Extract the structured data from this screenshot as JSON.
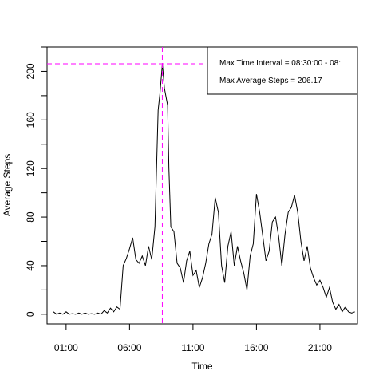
{
  "chart_data": {
    "type": "line",
    "xlabel": "Time",
    "ylabel": "Average Steps",
    "xlim": [
      -0.5,
      23.96
    ],
    "ylim": [
      -8,
      220
    ],
    "x_unit": "hour of day",
    "xticks": [
      {
        "value": 1,
        "label": "01:00"
      },
      {
        "value": 6,
        "label": "06:00"
      },
      {
        "value": 11,
        "label": "11:00"
      },
      {
        "value": 16,
        "label": "16:00"
      },
      {
        "value": 21,
        "label": "21:00"
      }
    ],
    "yticks_labeled": [
      0,
      40,
      80,
      120,
      160,
      200
    ],
    "yticks_minor": [
      20,
      60,
      100,
      140,
      180,
      220
    ],
    "grid": false,
    "line_color": "#000000",
    "marker_color": "#ff00ff",
    "max_marker": {
      "x": 8.583,
      "y": 206.17
    },
    "annotation": {
      "line1": "Max Time Interval =   08:30:00 -  08:",
      "line2": "Max Average Steps =  206.17",
      "placement": "top-right"
    },
    "series": [
      {
        "points": [
          [
            0.0,
            2
          ],
          [
            0.25,
            0
          ],
          [
            0.5,
            1
          ],
          [
            0.75,
            0
          ],
          [
            1.0,
            2
          ],
          [
            1.25,
            0
          ],
          [
            1.5,
            0.5
          ],
          [
            1.75,
            0
          ],
          [
            2.0,
            1
          ],
          [
            2.25,
            0
          ],
          [
            2.5,
            1
          ],
          [
            2.75,
            0
          ],
          [
            3.0,
            0.5
          ],
          [
            3.25,
            0
          ],
          [
            3.5,
            1
          ],
          [
            3.75,
            0
          ],
          [
            4.0,
            3
          ],
          [
            4.25,
            1
          ],
          [
            4.5,
            5
          ],
          [
            4.75,
            2
          ],
          [
            5.0,
            6
          ],
          [
            5.25,
            4
          ],
          [
            5.5,
            40
          ],
          [
            5.75,
            46
          ],
          [
            6.0,
            54
          ],
          [
            6.25,
            63
          ],
          [
            6.5,
            45
          ],
          [
            6.75,
            42
          ],
          [
            7.0,
            48
          ],
          [
            7.25,
            40
          ],
          [
            7.5,
            56
          ],
          [
            7.75,
            45
          ],
          [
            8.0,
            72
          ],
          [
            8.25,
            168
          ],
          [
            8.4,
            182
          ],
          [
            8.583,
            206.17
          ],
          [
            8.75,
            186
          ],
          [
            9.0,
            172
          ],
          [
            9.1,
            120
          ],
          [
            9.25,
            72
          ],
          [
            9.5,
            68
          ],
          [
            9.75,
            42
          ],
          [
            10.0,
            38
          ],
          [
            10.25,
            26
          ],
          [
            10.5,
            44
          ],
          [
            10.75,
            52
          ],
          [
            11.0,
            32
          ],
          [
            11.25,
            36
          ],
          [
            11.5,
            22
          ],
          [
            11.75,
            30
          ],
          [
            12.0,
            42
          ],
          [
            12.25,
            58
          ],
          [
            12.5,
            66
          ],
          [
            12.75,
            96
          ],
          [
            13.0,
            84
          ],
          [
            13.25,
            40
          ],
          [
            13.5,
            26
          ],
          [
            13.75,
            56
          ],
          [
            14.0,
            68
          ],
          [
            14.25,
            40
          ],
          [
            14.5,
            56
          ],
          [
            14.75,
            44
          ],
          [
            15.0,
            34
          ],
          [
            15.25,
            20
          ],
          [
            15.5,
            48
          ],
          [
            15.75,
            58
          ],
          [
            16.0,
            99
          ],
          [
            16.25,
            84
          ],
          [
            16.5,
            64
          ],
          [
            16.75,
            44
          ],
          [
            17.0,
            52
          ],
          [
            17.25,
            76
          ],
          [
            17.5,
            80
          ],
          [
            17.75,
            64
          ],
          [
            18.0,
            40
          ],
          [
            18.25,
            66
          ],
          [
            18.5,
            84
          ],
          [
            18.75,
            88
          ],
          [
            19.0,
            98
          ],
          [
            19.25,
            84
          ],
          [
            19.5,
            60
          ],
          [
            19.75,
            44
          ],
          [
            20.0,
            56
          ],
          [
            20.25,
            38
          ],
          [
            20.5,
            30
          ],
          [
            20.75,
            24
          ],
          [
            21.0,
            28
          ],
          [
            21.25,
            22
          ],
          [
            21.5,
            14
          ],
          [
            21.75,
            22
          ],
          [
            22.0,
            10
          ],
          [
            22.25,
            4
          ],
          [
            22.5,
            8
          ],
          [
            22.75,
            2
          ],
          [
            23.0,
            6
          ],
          [
            23.25,
            2
          ],
          [
            23.5,
            1
          ],
          [
            23.75,
            2
          ]
        ]
      }
    ]
  }
}
